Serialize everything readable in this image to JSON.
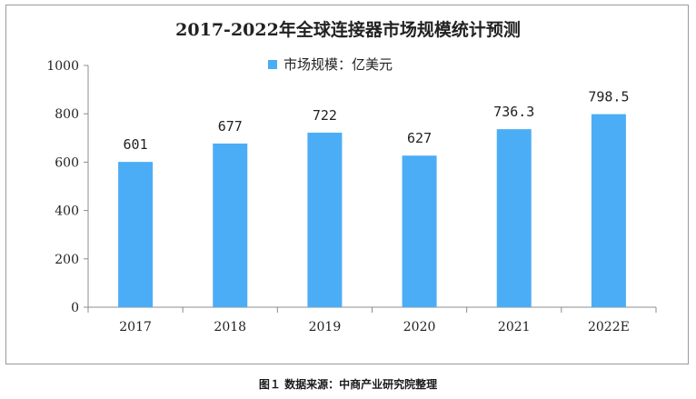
{
  "chart_data": {
    "type": "bar",
    "title": "2017-2022年全球连接器市场规模统计预测",
    "categories": [
      "2017",
      "2018",
      "2019",
      "2020",
      "2021",
      "2022E"
    ],
    "series": [
      {
        "name": "市场规模：亿美元",
        "values": [
          601,
          677,
          722,
          627,
          736.3,
          798.5
        ]
      }
    ],
    "data_labels": [
      "601",
      "677",
      "722",
      "627",
      "736.3",
      "798.5"
    ],
    "yticks": [
      0,
      200,
      400,
      600,
      800,
      1000
    ],
    "ylim": [
      0,
      1000
    ],
    "xlabel": "",
    "ylabel": "",
    "grid": false,
    "legend_position": "top-center",
    "bar_color": "#4badf6"
  },
  "caption": "图１ 数据来源：中商产业研究院整理"
}
